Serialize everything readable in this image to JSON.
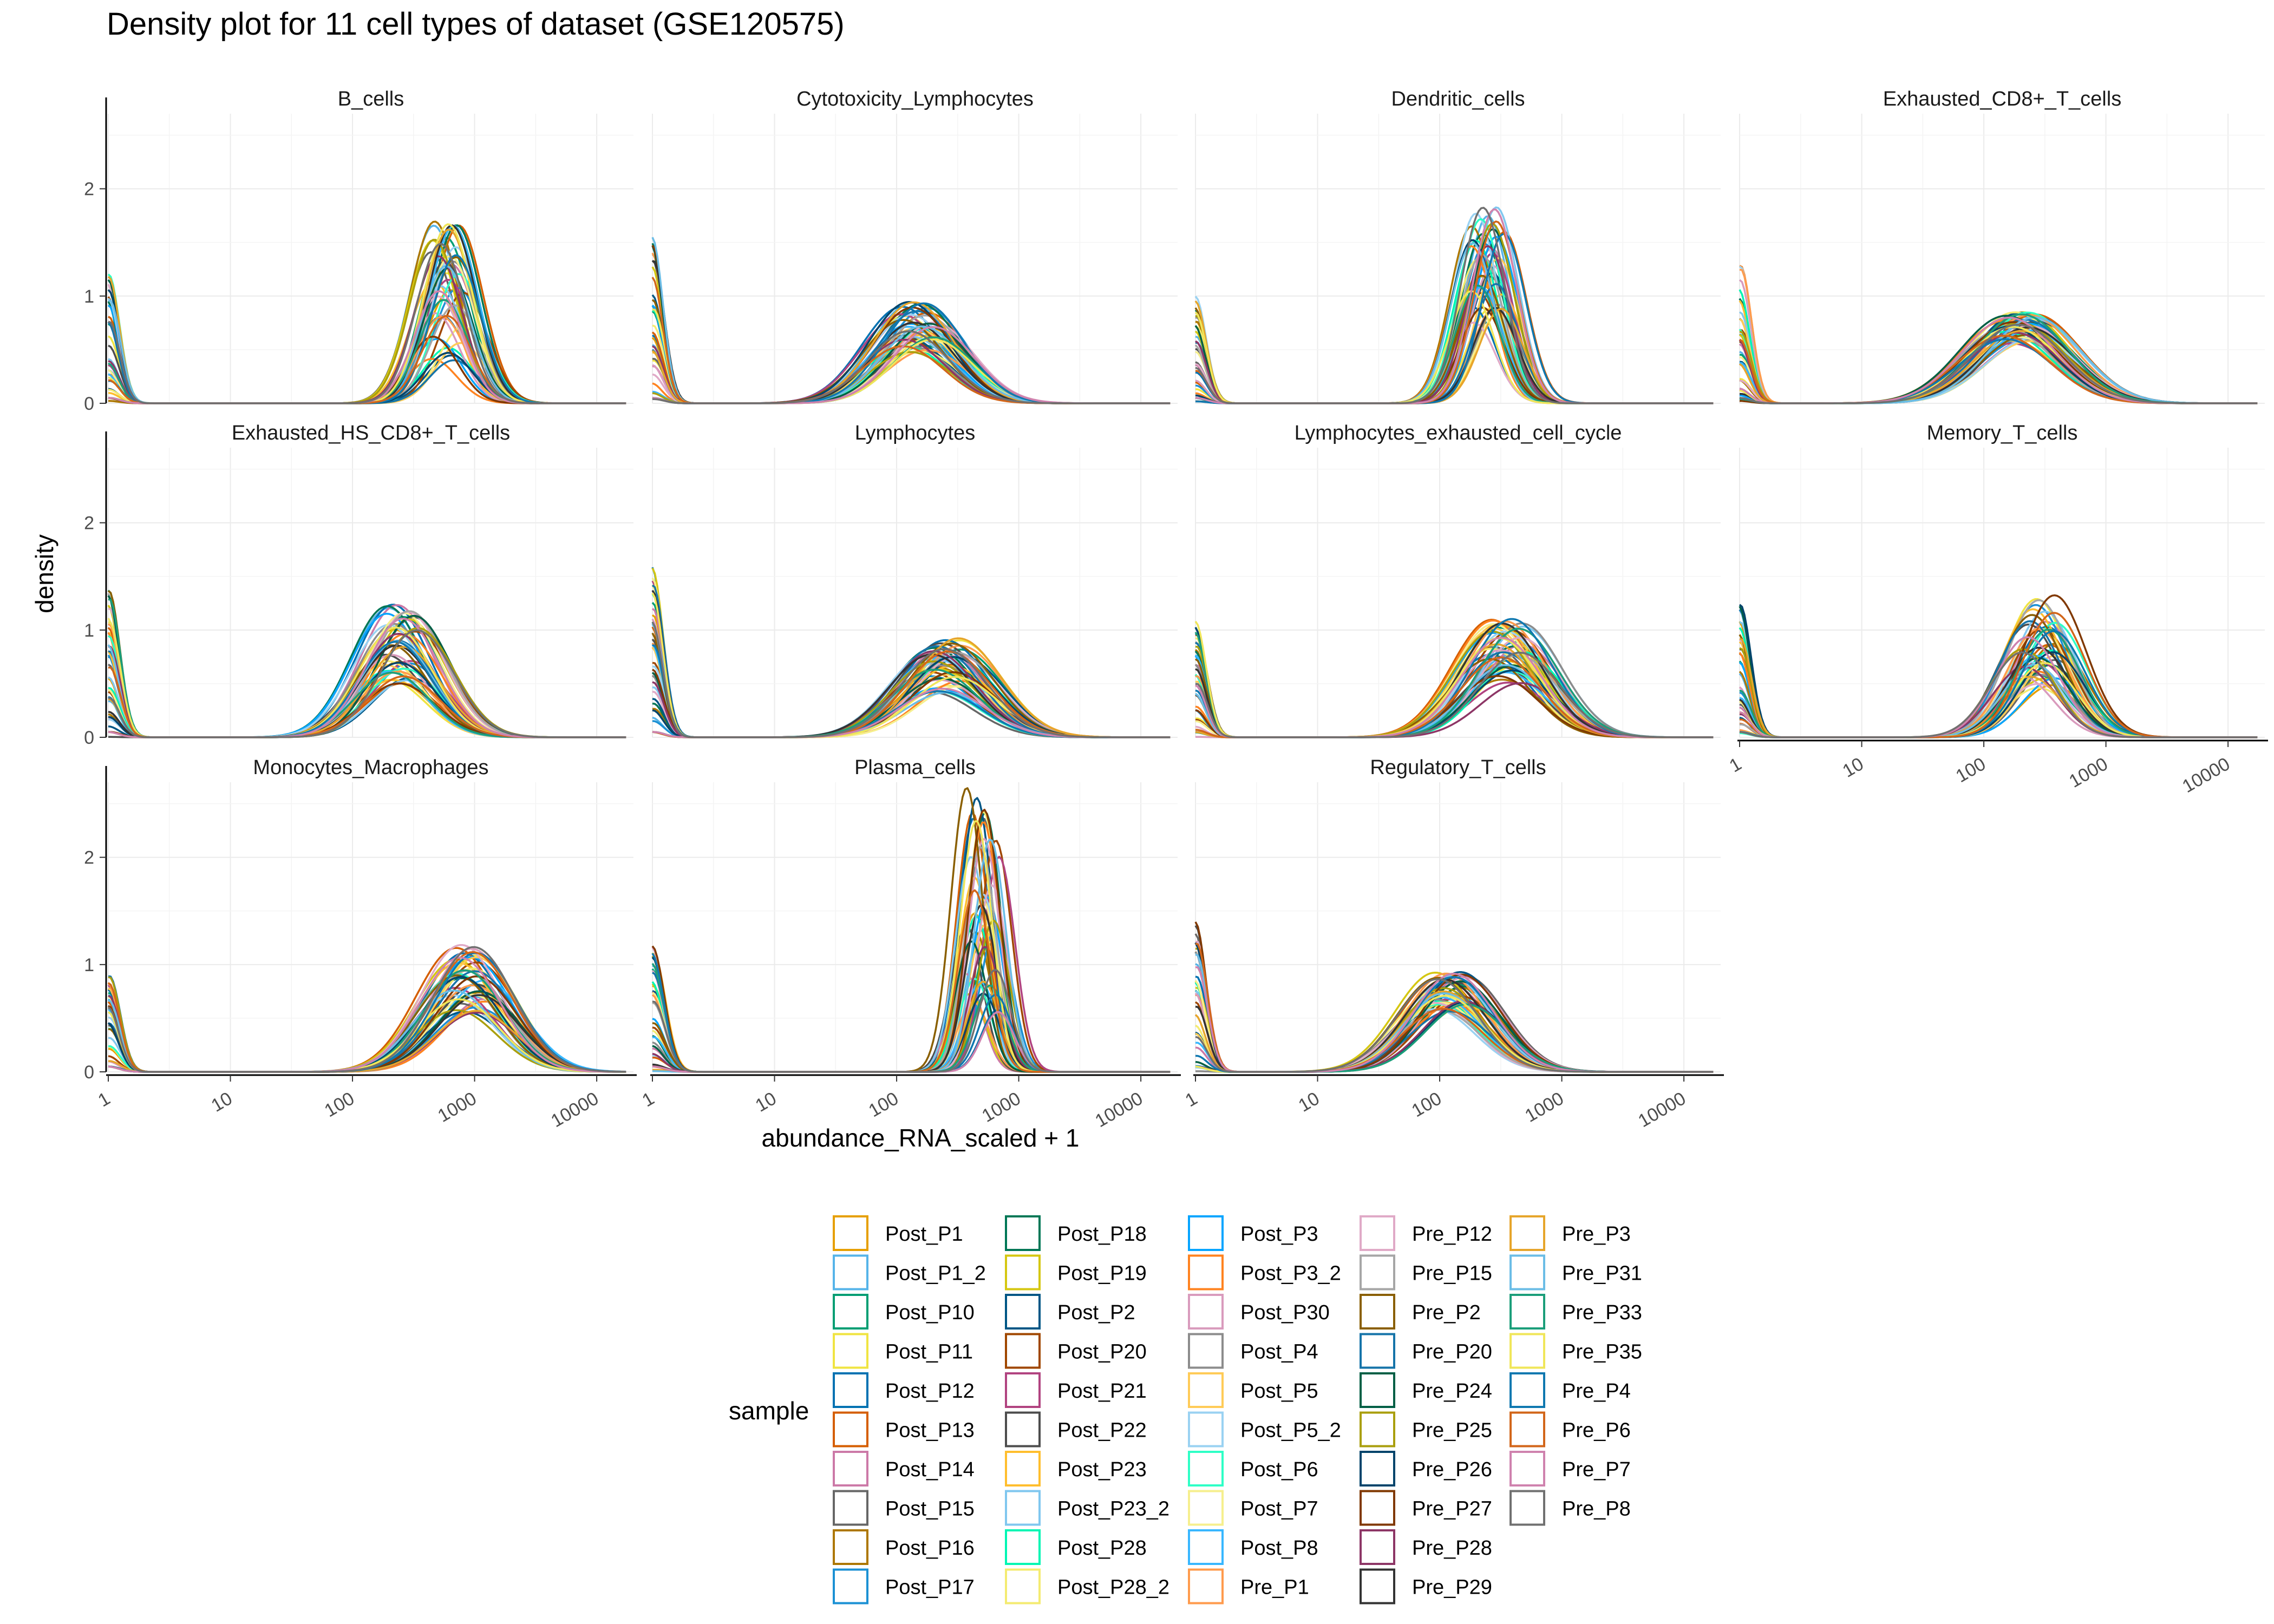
{
  "chart_data": {
    "type": "line",
    "title": "Density plot for 11 cell types of dataset (GSE120575)",
    "xlabel": "abundance_RNA_scaled + 1",
    "ylabel": "density",
    "x_scale": "log10",
    "xlim": [
      1,
      20000
    ],
    "ylim": [
      0,
      2.7
    ],
    "x_ticks": [
      "1",
      "10",
      "100",
      "1000",
      "10000"
    ],
    "y_ticks": [
      "0",
      "1",
      "2"
    ],
    "grid": true,
    "legend_title": "sample",
    "legend_position": "bottom",
    "series": [
      {
        "name": "Post_P1",
        "color": "#E69F00"
      },
      {
        "name": "Post_P1_2",
        "color": "#56B4E9"
      },
      {
        "name": "Post_P10",
        "color": "#009E73"
      },
      {
        "name": "Post_P11",
        "color": "#F0E442"
      },
      {
        "name": "Post_P12",
        "color": "#0072B2"
      },
      {
        "name": "Post_P13",
        "color": "#D55E00"
      },
      {
        "name": "Post_P14",
        "color": "#CC79A7"
      },
      {
        "name": "Post_P15",
        "color": "#666666"
      },
      {
        "name": "Post_P16",
        "color": "#AD7700"
      },
      {
        "name": "Post_P17",
        "color": "#1C91D4"
      },
      {
        "name": "Post_P18",
        "color": "#007756"
      },
      {
        "name": "Post_P19",
        "color": "#D5C711"
      },
      {
        "name": "Post_P2",
        "color": "#005685"
      },
      {
        "name": "Post_P20",
        "color": "#A04700"
      },
      {
        "name": "Post_P21",
        "color": "#B14380"
      },
      {
        "name": "Post_P22",
        "color": "#4D4D4D"
      },
      {
        "name": "Post_P23",
        "color": "#FFBE2D"
      },
      {
        "name": "Post_P23_2",
        "color": "#80C7EF"
      },
      {
        "name": "Post_P28",
        "color": "#00F6B3"
      },
      {
        "name": "Post_P28_2",
        "color": "#F4EB71"
      },
      {
        "name": "Post_P3",
        "color": "#06A5FF"
      },
      {
        "name": "Post_P3_2",
        "color": "#FF8320"
      },
      {
        "name": "Post_P30",
        "color": "#D99BBD"
      },
      {
        "name": "Post_P4",
        "color": "#8C8C8C"
      },
      {
        "name": "Post_P5",
        "color": "#FFCB57"
      },
      {
        "name": "Post_P5_2",
        "color": "#9AD2F2"
      },
      {
        "name": "Post_P6",
        "color": "#2EFFC6"
      },
      {
        "name": "Post_P7",
        "color": "#F6EF8E"
      },
      {
        "name": "Post_P8",
        "color": "#38B7FF"
      },
      {
        "name": "Pre_P1",
        "color": "#FF9B4D"
      },
      {
        "name": "Pre_P12",
        "color": "#E0AAC7"
      },
      {
        "name": "Pre_P15",
        "color": "#A6A6A6"
      },
      {
        "name": "Pre_P2",
        "color": "#8A5F00"
      },
      {
        "name": "Pre_P20",
        "color": "#1674A9"
      },
      {
        "name": "Pre_P24",
        "color": "#005F45"
      },
      {
        "name": "Pre_P25",
        "color": "#AA9F0D"
      },
      {
        "name": "Pre_P26",
        "color": "#00446B"
      },
      {
        "name": "Pre_P27",
        "color": "#803800"
      },
      {
        "name": "Pre_P28",
        "color": "#8D3666"
      },
      {
        "name": "Pre_P29",
        "color": "#333333"
      },
      {
        "name": "Pre_P3",
        "color": "#E6A52B"
      },
      {
        "name": "Pre_P31",
        "color": "#6BBDE6"
      },
      {
        "name": "Pre_P33",
        "color": "#1B9E7A"
      },
      {
        "name": "Pre_P35",
        "color": "#F0E65A"
      },
      {
        "name": "Pre_P4",
        "color": "#0F78B0"
      },
      {
        "name": "Pre_P6",
        "color": "#D2661A"
      },
      {
        "name": "Pre_P7",
        "color": "#CF82AE"
      },
      {
        "name": "Pre_P8",
        "color": "#707070"
      }
    ],
    "panels": [
      {
        "label": "B_cells",
        "peaks": [
          {
            "x": 1,
            "y": [
              0.0,
              1.3
            ],
            "sd": 0.09
          },
          {
            "x": 600,
            "y": [
              0.35,
              1.75
            ],
            "sd": 0.2
          }
        ]
      },
      {
        "label": "Cytotoxicity_Lymphocytes",
        "peaks": [
          {
            "x": 1,
            "y": [
              0.0,
              1.6
            ],
            "sd": 0.09
          },
          {
            "x": 150,
            "y": [
              0.45,
              0.95
            ],
            "sd": 0.33
          }
        ]
      },
      {
        "label": "Dendritic_cells",
        "peaks": [
          {
            "x": 1,
            "y": [
              0.0,
              1.1
            ],
            "sd": 0.09
          },
          {
            "x": 250,
            "y": [
              0.75,
              1.85
            ],
            "sd": 0.18
          }
        ]
      },
      {
        "label": "Exhausted_CD8+_T_cells",
        "peaks": [
          {
            "x": 1,
            "y": [
              0.0,
              1.3
            ],
            "sd": 0.09
          },
          {
            "x": 200,
            "y": [
              0.55,
              0.85
            ],
            "sd": 0.38
          }
        ]
      },
      {
        "label": "Exhausted_HS_CD8+_T_cells",
        "peaks": [
          {
            "x": 1,
            "y": [
              0.0,
              1.4
            ],
            "sd": 0.09
          },
          {
            "x": 250,
            "y": [
              0.5,
              1.25
            ],
            "sd": 0.3
          }
        ]
      },
      {
        "label": "Lymphocytes",
        "peaks": [
          {
            "x": 1,
            "y": [
              0.0,
              1.6
            ],
            "sd": 0.09
          },
          {
            "x": 250,
            "y": [
              0.4,
              0.95
            ],
            "sd": 0.35
          }
        ]
      },
      {
        "label": "Lymphocytes_exhausted_cell_cycle",
        "peaks": [
          {
            "x": 1,
            "y": [
              0.0,
              1.1
            ],
            "sd": 0.09
          },
          {
            "x": 350,
            "y": [
              0.5,
              1.15
            ],
            "sd": 0.33
          }
        ]
      },
      {
        "label": "Memory_T_cells",
        "peaks": [
          {
            "x": 1,
            "y": [
              0.0,
              1.25
            ],
            "sd": 0.09
          },
          {
            "x": 280,
            "y": [
              0.45,
              1.35
            ],
            "sd": 0.26
          }
        ]
      },
      {
        "label": "Monocytes_Macrophages",
        "peaks": [
          {
            "x": 1,
            "y": [
              0.0,
              0.9
            ],
            "sd": 0.09
          },
          {
            "x": 900,
            "y": [
              0.55,
              1.2
            ],
            "sd": 0.33
          }
        ]
      },
      {
        "label": "Plasma_cells",
        "peaks": [
          {
            "x": 1,
            "y": [
              0.0,
              1.2
            ],
            "sd": 0.1
          },
          {
            "x": 500,
            "y": [
              0.45,
              2.65
            ],
            "sd": 0.13
          }
        ]
      },
      {
        "label": "Regulatory_T_cells",
        "peaks": [
          {
            "x": 1,
            "y": [
              0.0,
              1.4
            ],
            "sd": 0.09
          },
          {
            "x": 120,
            "y": [
              0.55,
              0.95
            ],
            "sd": 0.33
          }
        ]
      }
    ]
  }
}
